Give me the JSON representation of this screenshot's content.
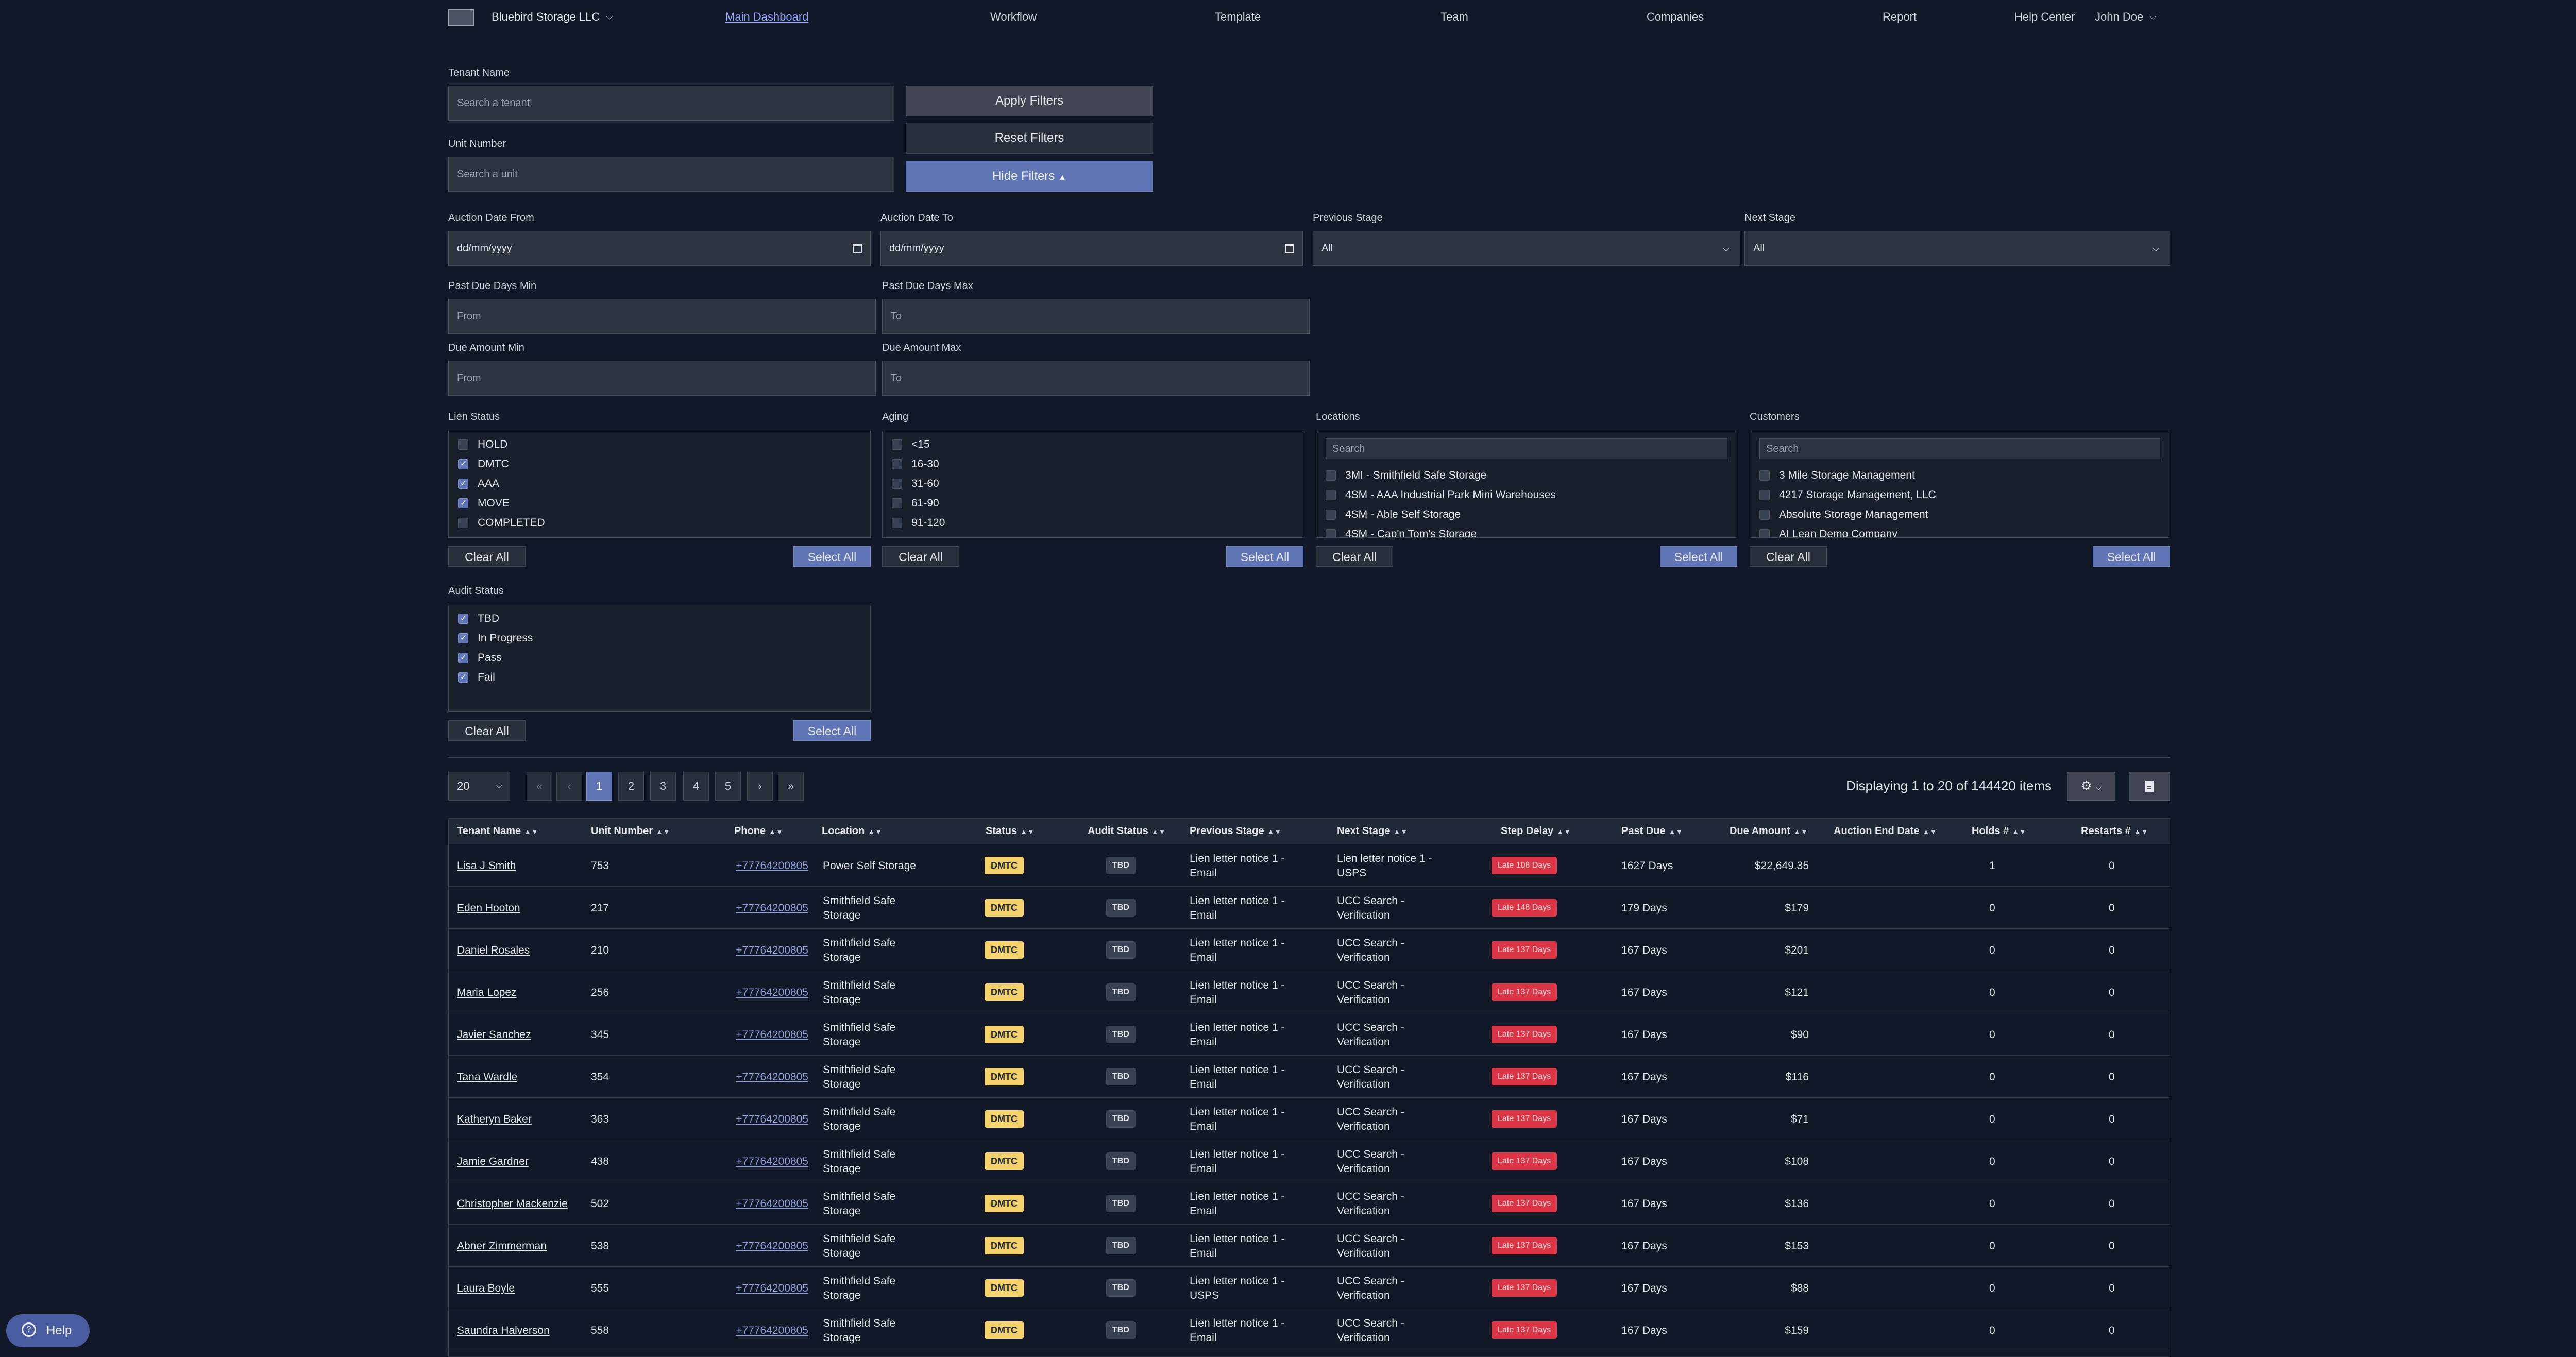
{
  "nav": {
    "company": "Bluebird Storage LLC",
    "links": [
      "Main Dashboard",
      "Workflow",
      "Template",
      "Team",
      "Companies",
      "Report"
    ],
    "help_center": "Help Center",
    "user": "John Doe"
  },
  "filters": {
    "tenant_name_label": "Tenant Name",
    "tenant_placeholder": "Search a tenant",
    "unit_number_label": "Unit Number",
    "unit_placeholder": "Search a unit",
    "apply": "Apply Filters",
    "reset": "Reset Filters",
    "hide": "Hide Filters",
    "auction_from_label": "Auction Date From",
    "auction_from_value": "dd/mm/yyyy",
    "auction_to_label": "Auction Date To",
    "auction_to_value": "dd/mm/yyyy",
    "previous_stage_label": "Previous Stage",
    "previous_stage_value": "All",
    "next_stage_label": "Next Stage",
    "next_stage_value": "All",
    "past_due_min_label": "Past Due Days Min",
    "past_due_min_placeholder": "From",
    "past_due_max_label": "Past Due Days Max",
    "past_due_max_placeholder": "To",
    "due_amount_min_label": "Due Amount Min",
    "due_amount_min_placeholder": "From",
    "due_amount_max_label": "Due Amount Max",
    "due_amount_max_placeholder": "To",
    "lien_status": {
      "label": "Lien Status",
      "items": [
        {
          "label": "HOLD",
          "checked": false
        },
        {
          "label": "DMTC",
          "checked": true
        },
        {
          "label": "AAA",
          "checked": true
        },
        {
          "label": "MOVE",
          "checked": true
        },
        {
          "label": "COMPLETED",
          "checked": false
        }
      ]
    },
    "aging": {
      "label": "Aging",
      "items": [
        {
          "label": "<15",
          "checked": false
        },
        {
          "label": "16-30",
          "checked": false
        },
        {
          "label": "31-60",
          "checked": false
        },
        {
          "label": "61-90",
          "checked": false
        },
        {
          "label": "91-120",
          "checked": false
        }
      ]
    },
    "locations": {
      "label": "Locations",
      "search_placeholder": "Search",
      "items": [
        {
          "label": "3MI - Smithfield Safe Storage",
          "checked": false
        },
        {
          "label": "4SM - AAA Industrial Park Mini Warehouses",
          "checked": false
        },
        {
          "label": "4SM - Able Self Storage",
          "checked": false
        },
        {
          "label": "4SM - Cap'n Tom's Storage",
          "checked": false
        }
      ]
    },
    "customers": {
      "label": "Customers",
      "search_placeholder": "Search",
      "items": [
        {
          "label": "3 Mile Storage Management",
          "checked": false
        },
        {
          "label": "4217 Storage Management, LLC",
          "checked": false
        },
        {
          "label": "Absolute Storage Management",
          "checked": false
        },
        {
          "label": "AI Lean Demo Company",
          "checked": false
        }
      ]
    },
    "audit_status": {
      "label": "Audit Status",
      "items": [
        {
          "label": "TBD",
          "checked": true
        },
        {
          "label": "In Progress",
          "checked": true
        },
        {
          "label": "Pass",
          "checked": true
        },
        {
          "label": "Fail",
          "checked": true
        }
      ]
    },
    "clear_all": "Clear All",
    "select_all": "Select All"
  },
  "pagination": {
    "per_page": "20",
    "first": "«",
    "prev": "‹",
    "pages": [
      "1",
      "2",
      "3",
      "4",
      "5"
    ],
    "current": "1",
    "next": "›",
    "last": "»",
    "displaying": "Displaying 1 to 20 of 144420 items"
  },
  "table": {
    "columns": [
      "Tenant Name",
      "Unit Number",
      "Phone",
      "Location",
      "Status",
      "Audit Status",
      "Previous Stage",
      "Next Stage",
      "Step Delay",
      "Past Due",
      "Due Amount",
      "Auction End Date",
      "Holds #",
      "Restarts #"
    ],
    "rows": [
      {
        "tenant": "Lisa J Smith",
        "unit": "753",
        "phone": "+77764200805",
        "location": [
          "Power Self Storage"
        ],
        "status": "DMTC",
        "audit": "TBD",
        "prev": [
          "Lien letter notice 1 -",
          "Email"
        ],
        "next": [
          "Lien letter notice 1 -",
          "USPS"
        ],
        "delay": "Late 108 Days",
        "past_due": "1627 Days",
        "due_amount": "$22,649.35",
        "auction_end": "",
        "holds": "1",
        "restarts": "0"
      },
      {
        "tenant": "Eden Hooton",
        "unit": "217",
        "phone": "+77764200805",
        "location": [
          "Smithfield Safe",
          "Storage"
        ],
        "status": "DMTC",
        "audit": "TBD",
        "prev": [
          "Lien letter notice 1 -",
          "Email"
        ],
        "next": [
          "UCC Search -",
          "Verification"
        ],
        "delay": "Late 148 Days",
        "past_due": "179 Days",
        "due_amount": "$179",
        "auction_end": "",
        "holds": "0",
        "restarts": "0"
      },
      {
        "tenant": "Daniel Rosales",
        "unit": "210",
        "phone": "+77764200805",
        "location": [
          "Smithfield Safe",
          "Storage"
        ],
        "status": "DMTC",
        "audit": "TBD",
        "prev": [
          "Lien letter notice 1 -",
          "Email"
        ],
        "next": [
          "UCC Search -",
          "Verification"
        ],
        "delay": "Late 137 Days",
        "past_due": "167 Days",
        "due_amount": "$201",
        "auction_end": "",
        "holds": "0",
        "restarts": "0"
      },
      {
        "tenant": "Maria Lopez",
        "unit": "256",
        "phone": "+77764200805",
        "location": [
          "Smithfield Safe",
          "Storage"
        ],
        "status": "DMTC",
        "audit": "TBD",
        "prev": [
          "Lien letter notice 1 -",
          "Email"
        ],
        "next": [
          "UCC Search -",
          "Verification"
        ],
        "delay": "Late 137 Days",
        "past_due": "167 Days",
        "due_amount": "$121",
        "auction_end": "",
        "holds": "0",
        "restarts": "0"
      },
      {
        "tenant": "Javier Sanchez",
        "unit": "345",
        "phone": "+77764200805",
        "location": [
          "Smithfield Safe",
          "Storage"
        ],
        "status": "DMTC",
        "audit": "TBD",
        "prev": [
          "Lien letter notice 1 -",
          "Email"
        ],
        "next": [
          "UCC Search -",
          "Verification"
        ],
        "delay": "Late 137 Days",
        "past_due": "167 Days",
        "due_amount": "$90",
        "auction_end": "",
        "holds": "0",
        "restarts": "0"
      },
      {
        "tenant": "Tana Wardle",
        "unit": "354",
        "phone": "+77764200805",
        "location": [
          "Smithfield Safe",
          "Storage"
        ],
        "status": "DMTC",
        "audit": "TBD",
        "prev": [
          "Lien letter notice 1 -",
          "Email"
        ],
        "next": [
          "UCC Search -",
          "Verification"
        ],
        "delay": "Late 137 Days",
        "past_due": "167 Days",
        "due_amount": "$116",
        "auction_end": "",
        "holds": "0",
        "restarts": "0"
      },
      {
        "tenant": "Katheryn Baker",
        "unit": "363",
        "phone": "+77764200805",
        "location": [
          "Smithfield Safe",
          "Storage"
        ],
        "status": "DMTC",
        "audit": "TBD",
        "prev": [
          "Lien letter notice 1 -",
          "Email"
        ],
        "next": [
          "UCC Search -",
          "Verification"
        ],
        "delay": "Late 137 Days",
        "past_due": "167 Days",
        "due_amount": "$71",
        "auction_end": "",
        "holds": "0",
        "restarts": "0"
      },
      {
        "tenant": "Jamie Gardner",
        "unit": "438",
        "phone": "+77764200805",
        "location": [
          "Smithfield Safe",
          "Storage"
        ],
        "status": "DMTC",
        "audit": "TBD",
        "prev": [
          "Lien letter notice 1 -",
          "Email"
        ],
        "next": [
          "UCC Search -",
          "Verification"
        ],
        "delay": "Late 137 Days",
        "past_due": "167 Days",
        "due_amount": "$108",
        "auction_end": "",
        "holds": "0",
        "restarts": "0"
      },
      {
        "tenant": "Christopher Mackenzie",
        "unit": "502",
        "phone": "+77764200805",
        "location": [
          "Smithfield Safe",
          "Storage"
        ],
        "status": "DMTC",
        "audit": "TBD",
        "prev": [
          "Lien letter notice 1 -",
          "Email"
        ],
        "next": [
          "UCC Search -",
          "Verification"
        ],
        "delay": "Late 137 Days",
        "past_due": "167 Days",
        "due_amount": "$136",
        "auction_end": "",
        "holds": "0",
        "restarts": "0"
      },
      {
        "tenant": "Abner Zimmerman",
        "unit": "538",
        "phone": "+77764200805",
        "location": [
          "Smithfield Safe",
          "Storage"
        ],
        "status": "DMTC",
        "audit": "TBD",
        "prev": [
          "Lien letter notice 1 -",
          "Email"
        ],
        "next": [
          "UCC Search -",
          "Verification"
        ],
        "delay": "Late 137 Days",
        "past_due": "167 Days",
        "due_amount": "$153",
        "auction_end": "",
        "holds": "0",
        "restarts": "0"
      },
      {
        "tenant": "Laura Boyle",
        "unit": "555",
        "phone": "+77764200805",
        "location": [
          "Smithfield Safe",
          "Storage"
        ],
        "status": "DMTC",
        "audit": "TBD",
        "prev": [
          "Lien letter notice 1 -",
          "USPS"
        ],
        "next": [
          "UCC Search -",
          "Verification"
        ],
        "delay": "Late 137 Days",
        "past_due": "167 Days",
        "due_amount": "$88",
        "auction_end": "",
        "holds": "0",
        "restarts": "0"
      },
      {
        "tenant": "Saundra Halverson",
        "unit": "558",
        "phone": "+77764200805",
        "location": [
          "Smithfield Safe",
          "Storage"
        ],
        "status": "DMTC",
        "audit": "TBD",
        "prev": [
          "Lien letter notice 1 -",
          "Email"
        ],
        "next": [
          "UCC Search -",
          "Verification"
        ],
        "delay": "Late 137 Days",
        "past_due": "167 Days",
        "due_amount": "$159",
        "auction_end": "",
        "holds": "0",
        "restarts": "0"
      }
    ]
  },
  "help": "Help",
  "colors": {
    "background": "#111827",
    "accent": "#6075b6",
    "active_link": "#93a6ff",
    "dmtc_badge": "#f5d16b",
    "late_badge": "#dc3545"
  }
}
